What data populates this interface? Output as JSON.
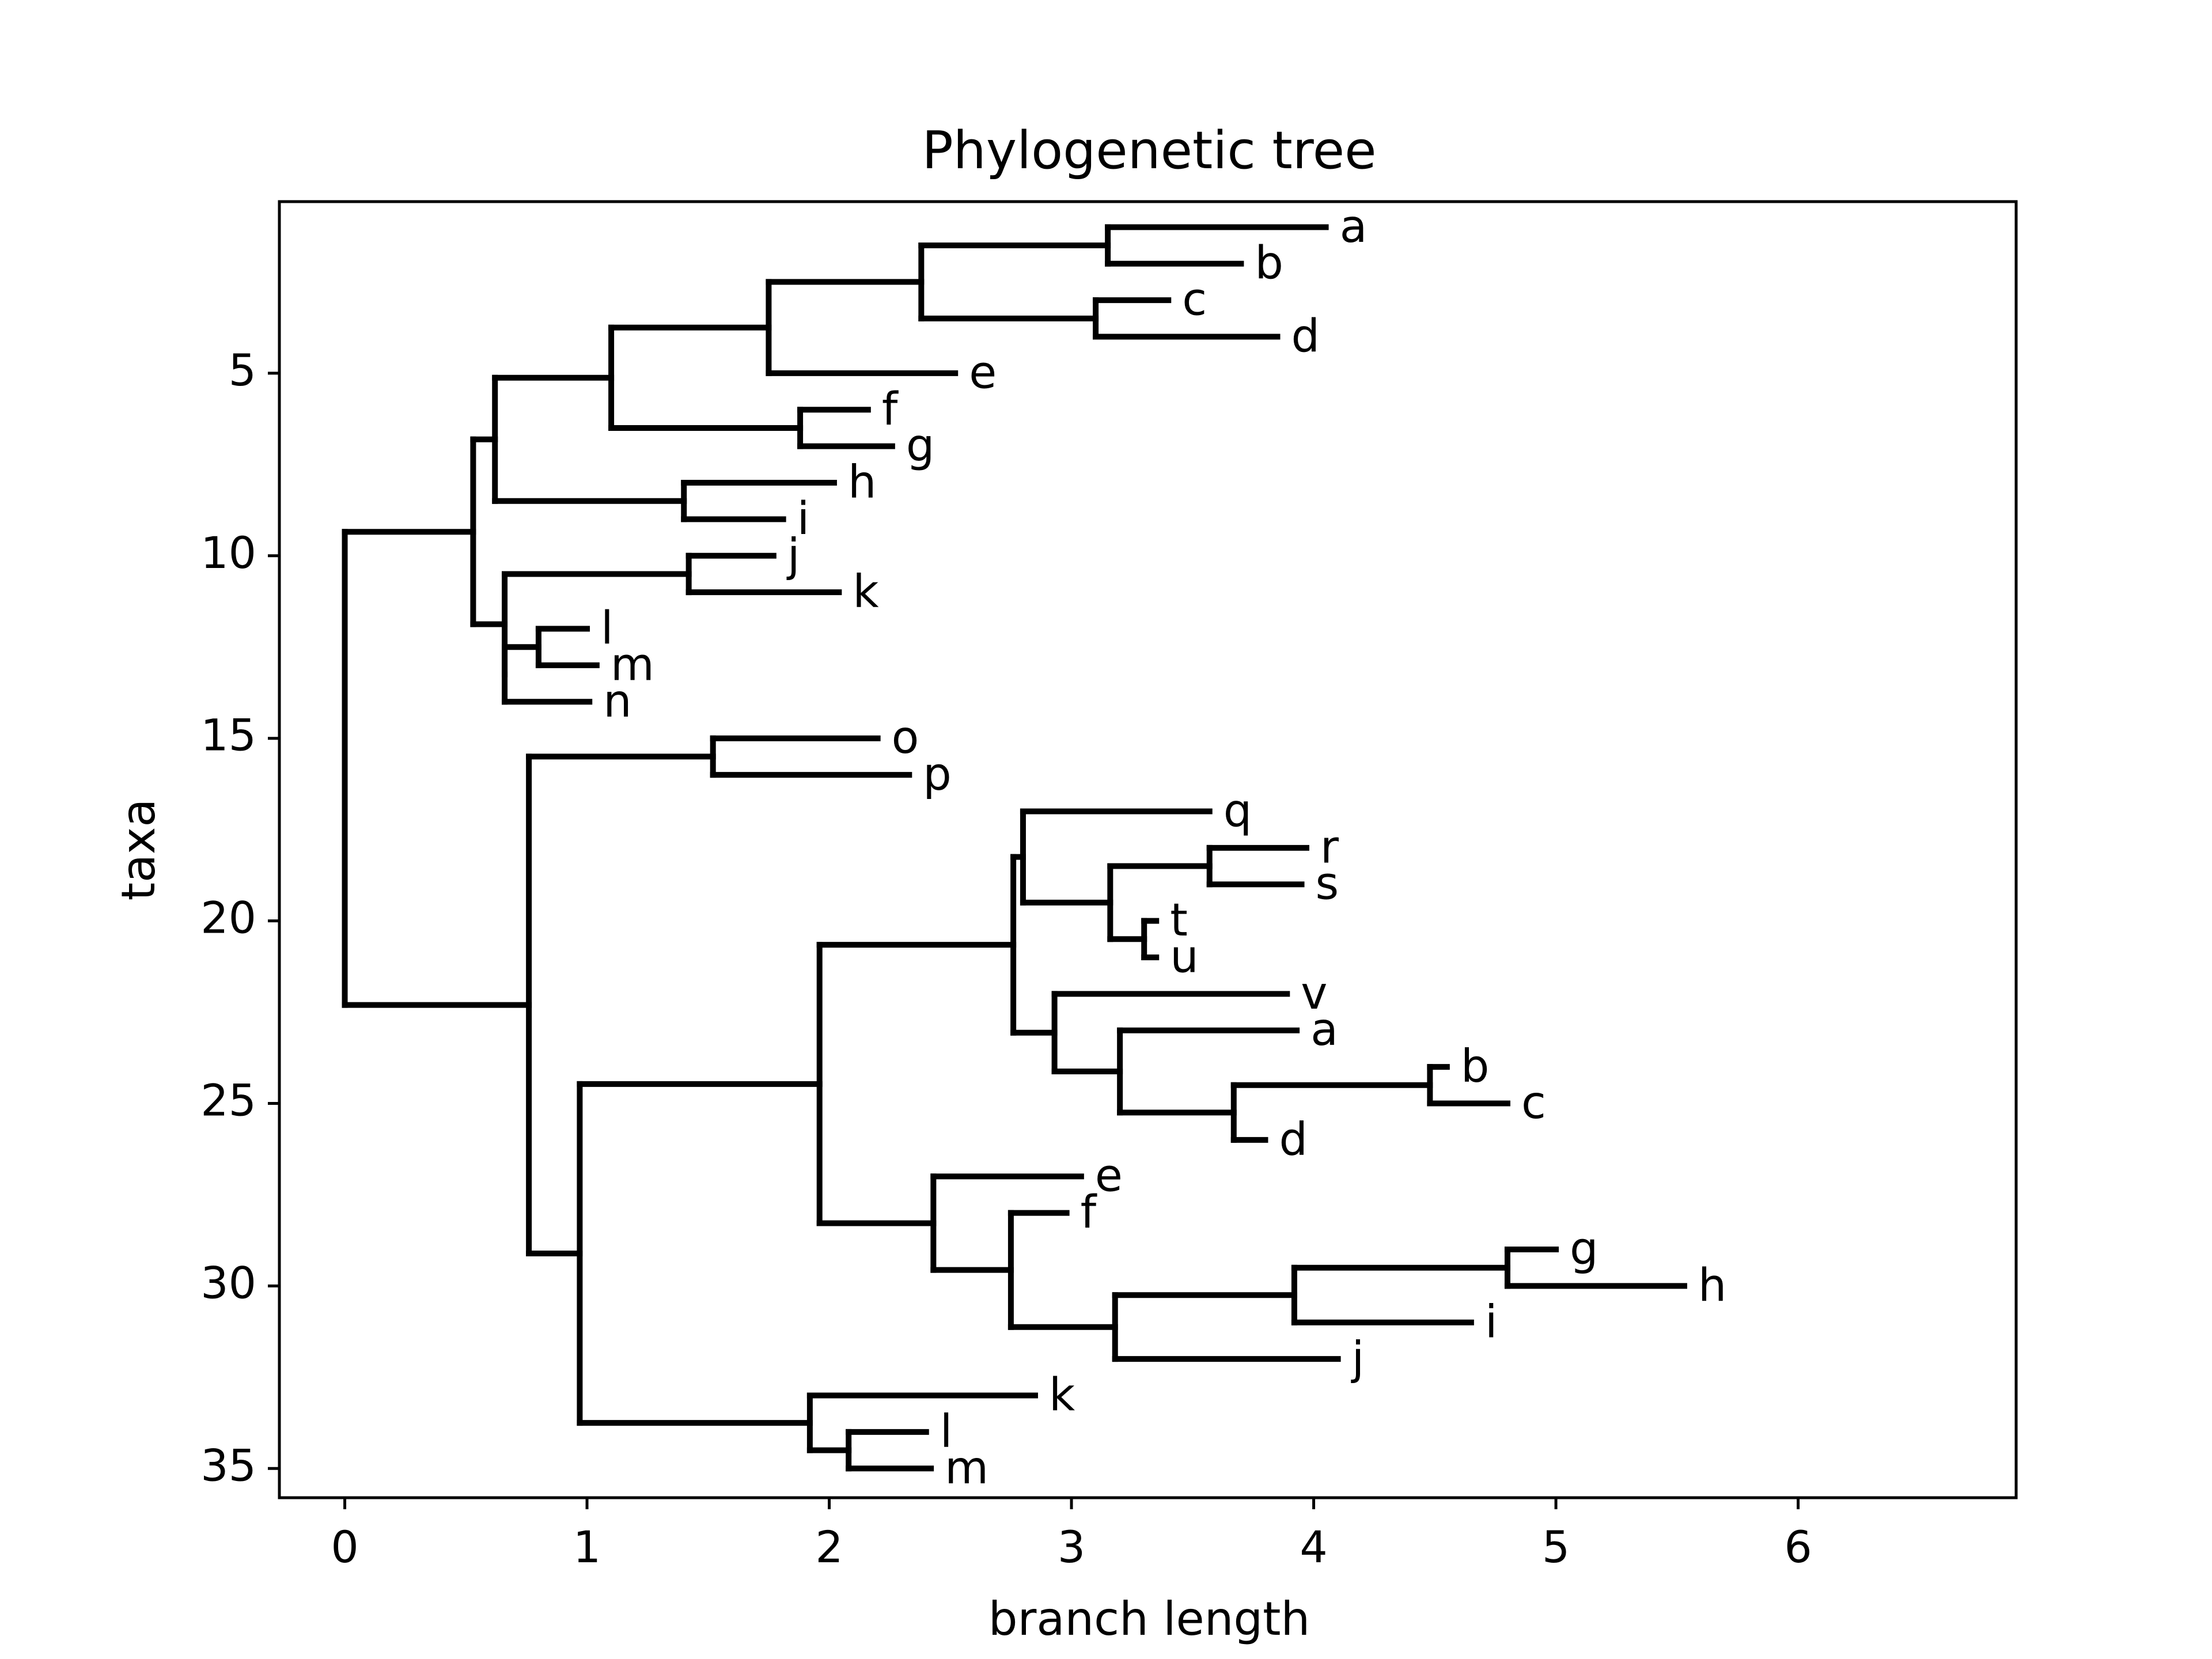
{
  "chart_data": {
    "type": "dendrogram",
    "title": "Phylogenetic tree",
    "xlabel": "branch length",
    "ylabel": "taxa",
    "xlim": [
      -0.27,
      6.9
    ],
    "ylim": [
      35.8,
      0.3
    ],
    "y_inverted": true,
    "xticks": [
      0,
      1,
      2,
      3,
      4,
      5,
      6
    ],
    "yticks": [
      5,
      10,
      15,
      20,
      25,
      30,
      35
    ],
    "grid": false,
    "legend": "none",
    "line_color": "#000000",
    "leaves": [
      {
        "label": "a",
        "x": 4.05,
        "y": 1
      },
      {
        "label": "b",
        "x": 3.7,
        "y": 2
      },
      {
        "label": "c",
        "x": 3.4,
        "y": 3
      },
      {
        "label": "d",
        "x": 3.85,
        "y": 4
      },
      {
        "label": "e",
        "x": 2.52,
        "y": 5
      },
      {
        "label": "f",
        "x": 2.16,
        "y": 6
      },
      {
        "label": "g",
        "x": 2.26,
        "y": 7
      },
      {
        "label": "h",
        "x": 2.02,
        "y": 8
      },
      {
        "label": "i",
        "x": 1.81,
        "y": 9
      },
      {
        "label": "j",
        "x": 1.77,
        "y": 10
      },
      {
        "label": "k",
        "x": 2.04,
        "y": 11
      },
      {
        "label": "l",
        "x": 1.0,
        "y": 12
      },
      {
        "label": "m",
        "x": 1.04,
        "y": 13
      },
      {
        "label": "n",
        "x": 1.01,
        "y": 14
      },
      {
        "label": "o",
        "x": 2.2,
        "y": 15
      },
      {
        "label": "p",
        "x": 2.33,
        "y": 16
      },
      {
        "label": "q",
        "x": 3.57,
        "y": 17
      },
      {
        "label": "r",
        "x": 3.97,
        "y": 18
      },
      {
        "label": "s",
        "x": 3.95,
        "y": 19
      },
      {
        "label": "t",
        "x": 3.35,
        "y": 20
      },
      {
        "label": "u",
        "x": 3.35,
        "y": 21
      },
      {
        "label": "v",
        "x": 3.89,
        "y": 22
      },
      {
        "label": "a",
        "x": 3.93,
        "y": 23
      },
      {
        "label": "b",
        "x": 4.55,
        "y": 24
      },
      {
        "label": "c",
        "x": 4.8,
        "y": 25
      },
      {
        "label": "d",
        "x": 3.8,
        "y": 26
      },
      {
        "label": "e",
        "x": 3.04,
        "y": 27
      },
      {
        "label": "f",
        "x": 2.98,
        "y": 28
      },
      {
        "label": "g",
        "x": 5.0,
        "y": 29
      },
      {
        "label": "h",
        "x": 5.53,
        "y": 30
      },
      {
        "label": "i",
        "x": 4.65,
        "y": 31
      },
      {
        "label": "j",
        "x": 4.1,
        "y": 32
      },
      {
        "label": "k",
        "x": 2.85,
        "y": 33
      },
      {
        "label": "l",
        "x": 2.4,
        "y": 34
      },
      {
        "label": "m",
        "x": 2.42,
        "y": 35
      }
    ],
    "nodes": [
      {
        "x": 0.0,
        "children": [
          "N_top",
          "N_bottom"
        ]
      },
      {
        "id": "N_top",
        "x": 0.53,
        "children": [
          "N_t1",
          "N_t2"
        ]
      },
      {
        "id": "N_t1",
        "x": 0.62,
        "children": [
          "N_t3",
          "N_hi"
        ]
      },
      {
        "id": "N_t3",
        "x": 1.1,
        "children": [
          "N_abcde",
          "N_fg"
        ]
      },
      {
        "id": "N_abcde",
        "x": 1.75,
        "children": [
          "N_abcd",
          "L5"
        ]
      },
      {
        "id": "N_abcd",
        "x": 2.38,
        "children": [
          "N_ab",
          "N_cd"
        ]
      },
      {
        "id": "N_ab",
        "x": 3.15,
        "children": [
          "L1",
          "L2"
        ]
      },
      {
        "id": "N_cd",
        "x": 3.1,
        "children": [
          "L3",
          "L4"
        ]
      },
      {
        "id": "N_fg",
        "x": 1.88,
        "children": [
          "L6",
          "L7"
        ]
      },
      {
        "id": "N_hi",
        "x": 1.4,
        "children": [
          "L8",
          "L9"
        ]
      },
      {
        "id": "N_t2",
        "x": 0.66,
        "children": [
          "N_jk",
          "N_lmn"
        ]
      },
      {
        "id": "N_jk",
        "x": 1.42,
        "children": [
          "L10",
          "L11"
        ]
      },
      {
        "id": "N_lmn",
        "x": 0.66,
        "children": [
          "N_lm",
          "L14"
        ]
      },
      {
        "id": "N_lm",
        "x": 0.8,
        "children": [
          "L12",
          "L13"
        ]
      },
      {
        "id": "N_bottom",
        "x": 0.76,
        "children": [
          "N_op",
          "N_b2"
        ]
      },
      {
        "id": "N_op",
        "x": 1.52,
        "children": [
          "L15",
          "L16"
        ]
      },
      {
        "id": "N_b2",
        "x": 0.97,
        "children": [
          "N_b3",
          "N_klm"
        ]
      },
      {
        "id": "N_b3",
        "x": 1.96,
        "children": [
          "N_qd",
          "N_ej"
        ]
      },
      {
        "id": "N_qd",
        "x": 2.76,
        "children": [
          "N_qu",
          "N_vd"
        ]
      },
      {
        "id": "N_qu",
        "x": 2.8,
        "children": [
          "L17",
          "N_ru"
        ]
      },
      {
        "id": "N_ru",
        "x": 3.16,
        "children": [
          "N_rs",
          "N_tu"
        ]
      },
      {
        "id": "N_rs",
        "x": 3.57,
        "children": [
          "L18",
          "L19"
        ]
      },
      {
        "id": "N_tu",
        "x": 3.3,
        "children": [
          "L20",
          "L21"
        ]
      },
      {
        "id": "N_vd",
        "x": 2.93,
        "children": [
          "L22",
          "N_ad"
        ]
      },
      {
        "id": "N_ad",
        "x": 3.2,
        "children": [
          "L23",
          "N_bd"
        ]
      },
      {
        "id": "N_bd",
        "x": 3.67,
        "children": [
          "N_bc",
          "L26"
        ]
      },
      {
        "id": "N_bc",
        "x": 4.48,
        "children": [
          "L24",
          "L25"
        ]
      },
      {
        "id": "N_ej",
        "x": 2.43,
        "children": [
          "L27",
          "N_fj"
        ]
      },
      {
        "id": "N_fj",
        "x": 2.75,
        "children": [
          "L28",
          "N_gj"
        ]
      },
      {
        "id": "N_gj",
        "x": 3.18,
        "children": [
          "N_gi",
          "L32"
        ]
      },
      {
        "id": "N_gi",
        "x": 3.92,
        "children": [
          "N_gh",
          "L31"
        ]
      },
      {
        "id": "N_gh",
        "x": 4.8,
        "children": [
          "L29",
          "L30"
        ]
      },
      {
        "id": "N_klm",
        "x": 1.92,
        "children": [
          "L33",
          "N_lm2"
        ]
      },
      {
        "id": "N_lm2",
        "x": 2.08,
        "children": [
          "L34",
          "L35"
        ]
      }
    ]
  }
}
